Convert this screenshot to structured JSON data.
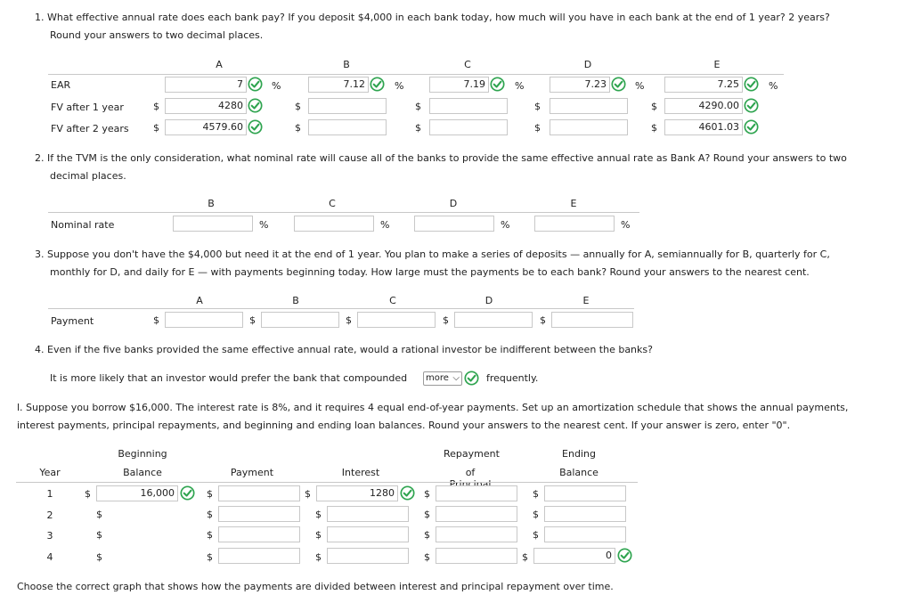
{
  "q1": {
    "line1": "1. What effective annual rate does each bank pay? If you deposit $4,000 in each bank today, how much will you have in each bank at the end of 1 year? 2 years?",
    "line2": "Round your answers to two decimal places.",
    "banks": [
      "A",
      "B",
      "C",
      "D",
      "E"
    ],
    "rows": [
      "EAR",
      "FV after 1 year",
      "FV after 2 years"
    ],
    "ear": [
      "7",
      "7.12",
      "7.19",
      "7.23",
      "7.25"
    ],
    "fv1": [
      "4280",
      "",
      "",
      "",
      "4290.00"
    ],
    "fv2": [
      "4579.60",
      "",
      "",
      "",
      "4601.03"
    ]
  },
  "q2": {
    "line1": "2. If the TVM is the only consideration, what nominal rate will cause all of the banks to provide the same effective annual rate as Bank A? Round your answers to two",
    "line2": "decimal places.",
    "banks": [
      "B",
      "C",
      "D",
      "E"
    ],
    "row": "Nominal rate"
  },
  "q3": {
    "line1": "3. Suppose you don't have the $4,000 but need it at the end of 1 year. You plan to make a series of deposits — annually for A, semiannually for B, quarterly for C,",
    "line2": "monthly for D, and daily for E — with payments beginning today. How large must the payments be to each bank? Round your answers to the nearest cent.",
    "banks": [
      "A",
      "B",
      "C",
      "D",
      "E"
    ],
    "row": "Payment"
  },
  "q4": {
    "line1": "4. Even if the five banks provided the same effective annual rate, would a rational investor be indifferent between the banks?",
    "pre": "It is more likely that an investor would prefer the bank that compounded",
    "select": "more",
    "post": "frequently."
  },
  "qi": {
    "line1": "l. Suppose you borrow $16,000. The interest rate is 8%, and it requires 4 equal end-of-year payments. Set up an amortization schedule that shows the annual payments,",
    "line2": "interest payments, principal repayments, and beginning and ending loan balances. Round your answers to the nearest cent. If your answer is zero, enter \"0\".",
    "headers": {
      "year": "Year",
      "beg1": "Beginning",
      "beg2": "Balance",
      "payment": "Payment",
      "interest": "Interest",
      "rep1": "Repayment",
      "rep2": "of Principal",
      "end1": "Ending",
      "end2": "Balance"
    },
    "years": [
      "1",
      "2",
      "3",
      "4"
    ],
    "beginning": [
      "16,000",
      "",
      "",
      ""
    ],
    "payment": [
      "",
      "",
      "",
      ""
    ],
    "interest": [
      "1280",
      "",
      "",
      ""
    ],
    "repayment": [
      "",
      "",
      "",
      ""
    ],
    "ending": [
      "",
      "",
      "",
      "0"
    ]
  },
  "footer": "Choose the correct graph that shows how the payments are divided between interest and principal repayment over time.",
  "symbols": {
    "dollar": "$",
    "percent": "%"
  },
  "colors": {
    "check": "#2ea44f",
    "border": "#c8c8c8"
  }
}
